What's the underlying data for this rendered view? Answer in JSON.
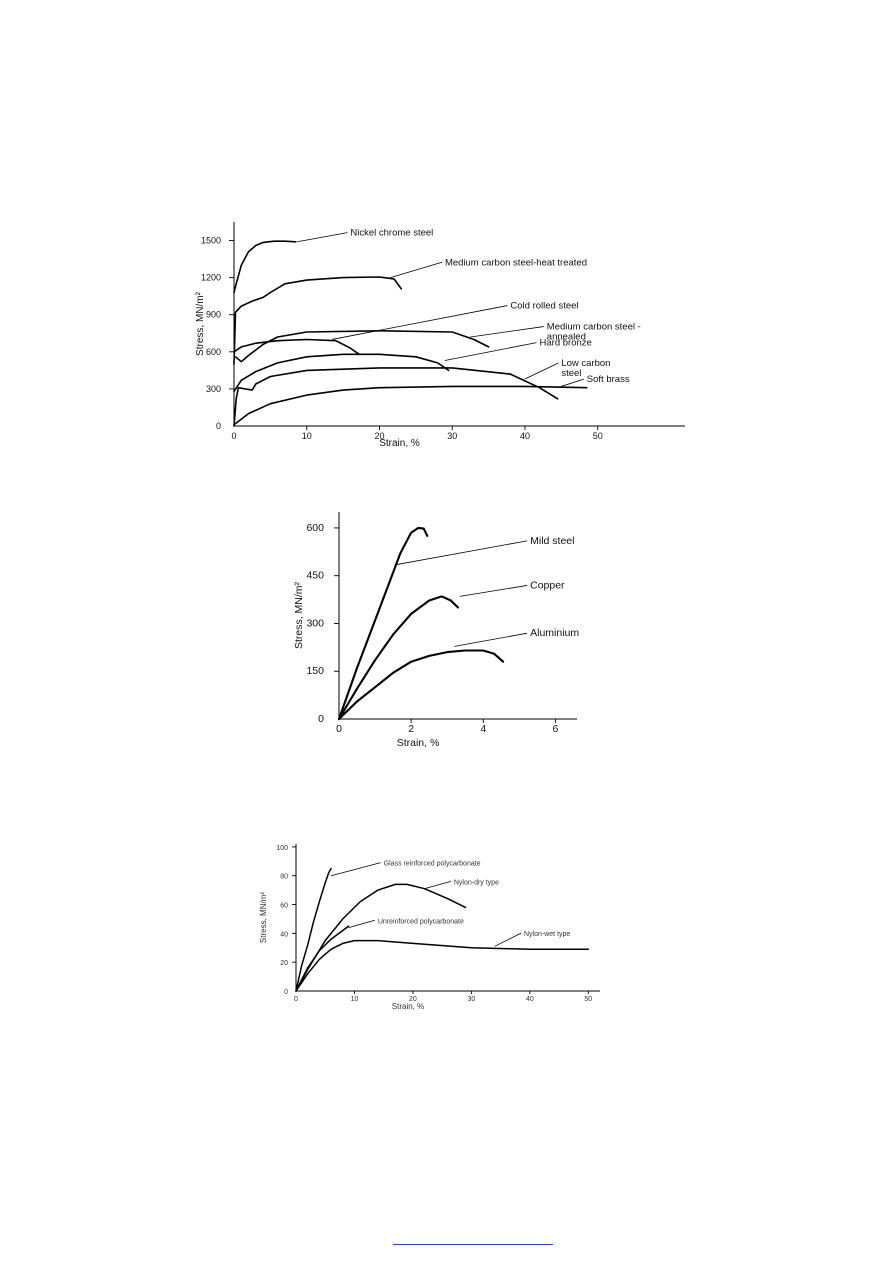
{
  "chart_data": [
    {
      "type": "line",
      "title": "",
      "xlabel": "Strain,   %",
      "ylabel": "Stress,   MN/m²",
      "xlim": [
        0,
        62
      ],
      "ylim": [
        0,
        1650
      ],
      "x_ticks": [
        0,
        10,
        20,
        30,
        40,
        50
      ],
      "y_ticks": [
        0,
        300,
        600,
        900,
        1200,
        1500
      ],
      "grid": false,
      "legend": "curve labels with leader lines",
      "series": [
        {
          "name": "Nickel chrome steel",
          "label_lines": [
            "Nickel chrome steel"
          ],
          "points": [
            [
              0,
              1080
            ],
            [
              0.3,
              1150
            ],
            [
              1,
              1300
            ],
            [
              2,
              1410
            ],
            [
              3,
              1460
            ],
            [
              4,
              1485
            ],
            [
              5.5,
              1495
            ],
            [
              7,
              1495
            ],
            [
              8.5,
              1490
            ]
          ],
          "label_at": [
            16,
            1540
          ],
          "leader_to": [
            8.7,
            1490
          ]
        },
        {
          "name": "Medium carbon steel-heat treated",
          "label_lines": [
            "Medium carbon steel-heat  treated"
          ],
          "points": [
            [
              0,
              500
            ],
            [
              0.2,
              920
            ],
            [
              1,
              970
            ],
            [
              2.5,
              1010
            ],
            [
              4,
              1040
            ],
            [
              5,
              1080
            ],
            [
              7,
              1150
            ],
            [
              10,
              1180
            ],
            [
              15,
              1200
            ],
            [
              20,
              1205
            ],
            [
              22,
              1190
            ],
            [
              23,
              1110
            ]
          ],
          "label_at": [
            29,
            1300
          ],
          "leader_to": [
            21.5,
            1200
          ]
        },
        {
          "name": "Cold rolled steel",
          "label_lines": [
            "Cold rolled steel"
          ],
          "points": [
            [
              0,
              600
            ],
            [
              1,
              640
            ],
            [
              3,
              670
            ],
            [
              6,
              690
            ],
            [
              10,
              700
            ],
            [
              14,
              690
            ],
            [
              16,
              630
            ],
            [
              17.2,
              580
            ]
          ],
          "label_at": [
            38,
            950
          ],
          "leader_to": [
            13.5,
            700
          ]
        },
        {
          "name": "Medium carbon steel-annealed",
          "label_lines": [
            "Medium carbon steel -",
            "annealed"
          ],
          "points": [
            [
              0.2,
              560
            ],
            [
              1,
              520
            ],
            [
              2,
              570
            ],
            [
              4,
              660
            ],
            [
              6,
              720
            ],
            [
              10,
              760
            ],
            [
              20,
              770
            ],
            [
              30,
              760
            ],
            [
              33,
              700
            ],
            [
              35,
              640
            ]
          ],
          "label_at": [
            43,
            780
          ],
          "leader_to": [
            32.5,
            720
          ]
        },
        {
          "name": "Hard bronze",
          "label_lines": [
            "Hard bronze"
          ],
          "points": [
            [
              0,
              280
            ],
            [
              1,
              370
            ],
            [
              3,
              440
            ],
            [
              6,
              510
            ],
            [
              10,
              560
            ],
            [
              15,
              580
            ],
            [
              20,
              580
            ],
            [
              25,
              560
            ],
            [
              28,
              510
            ],
            [
              29.5,
              450
            ]
          ],
          "label_at": [
            42,
            650
          ],
          "leader_to": [
            29,
            530
          ]
        },
        {
          "name": "Low carbon steel",
          "label_lines": [
            "Low carbon",
            "steel"
          ],
          "points": [
            [
              0,
              0
            ],
            [
              0.3,
              220
            ],
            [
              0.6,
              310
            ],
            [
              1.5,
              300
            ],
            [
              2.5,
              290
            ],
            [
              3,
              340
            ],
            [
              5,
              400
            ],
            [
              10,
              450
            ],
            [
              20,
              470
            ],
            [
              30,
              470
            ],
            [
              38,
              420
            ],
            [
              42,
              310
            ],
            [
              44.5,
              220
            ]
          ],
          "label_at": [
            45,
            485
          ],
          "leader_to": [
            40,
            380
          ]
        },
        {
          "name": "Soft brass",
          "label_lines": [
            "Soft brass"
          ],
          "points": [
            [
              0,
              10
            ],
            [
              2,
              100
            ],
            [
              5,
              180
            ],
            [
              10,
              250
            ],
            [
              15,
              290
            ],
            [
              20,
              310
            ],
            [
              30,
              320
            ],
            [
              40,
              320
            ],
            [
              48.5,
              310
            ]
          ],
          "label_at": [
            48.5,
            355
          ],
          "leader_to": [
            45,
            320
          ]
        }
      ]
    },
    {
      "type": "line",
      "title": "",
      "xlabel": "Strain,   %",
      "ylabel": "Stress,   MN/m²",
      "xlim": [
        0,
        6.6
      ],
      "ylim": [
        0,
        650
      ],
      "x_ticks": [
        0,
        2,
        4,
        6
      ],
      "y_ticks": [
        0,
        150,
        300,
        450,
        600
      ],
      "grid": false,
      "legend": "curve labels with leader lines",
      "series": [
        {
          "name": "Mild steel",
          "label_lines": [
            "Mild steel"
          ],
          "points": [
            [
              0,
              0
            ],
            [
              0.5,
              160
            ],
            [
              1,
              310
            ],
            [
              1.4,
              430
            ],
            [
              1.7,
              520
            ],
            [
              2,
              585
            ],
            [
              2.2,
              600
            ],
            [
              2.35,
              598
            ],
            [
              2.45,
              575
            ]
          ],
          "label_at": [
            5.3,
            550
          ],
          "leader_to": [
            1.6,
            485
          ]
        },
        {
          "name": "Copper",
          "label_lines": [
            "Copper"
          ],
          "points": [
            [
              0,
              0
            ],
            [
              0.5,
              95
            ],
            [
              1,
              185
            ],
            [
              1.5,
              265
            ],
            [
              2,
              330
            ],
            [
              2.5,
              372
            ],
            [
              2.85,
              385
            ],
            [
              3.1,
              372
            ],
            [
              3.3,
              350
            ]
          ],
          "label_at": [
            5.3,
            410
          ],
          "leader_to": [
            3.35,
            385
          ]
        },
        {
          "name": "Aluminium",
          "label_lines": [
            "Aluminium"
          ],
          "points": [
            [
              0,
              0
            ],
            [
              0.5,
              55
            ],
            [
              1,
              100
            ],
            [
              1.5,
              145
            ],
            [
              2,
              180
            ],
            [
              2.5,
              198
            ],
            [
              3,
              210
            ],
            [
              3.5,
              215
            ],
            [
              4,
              215
            ],
            [
              4.3,
              205
            ],
            [
              4.55,
              180
            ]
          ],
          "label_at": [
            5.3,
            260
          ],
          "leader_to": [
            3.2,
            228
          ]
        }
      ]
    },
    {
      "type": "line",
      "title": "",
      "xlabel": "Strain,   %",
      "ylabel": "Stress, MN/m²",
      "xlim": [
        0,
        52
      ],
      "ylim": [
        0,
        102
      ],
      "x_ticks": [
        0,
        10,
        20,
        30,
        40,
        50
      ],
      "y_ticks": [
        0,
        20,
        40,
        60,
        80,
        100
      ],
      "grid": false,
      "legend": "curve labels with leader lines",
      "series": [
        {
          "name": "Glass reinforced polycarbonate",
          "label_lines": [
            "Glass reinforced polycarbonate"
          ],
          "points": [
            [
              0,
              0
            ],
            [
              1,
              18
            ],
            [
              2,
              32
            ],
            [
              3,
              48
            ],
            [
              4,
              62
            ],
            [
              5,
              75
            ],
            [
              5.6,
              82
            ],
            [
              6,
              85
            ]
          ],
          "label_at": [
            15,
            87
          ],
          "leader_to": [
            6,
            80
          ]
        },
        {
          "name": "Nylon-dry type",
          "label_lines": [
            "Nylon-dry type"
          ],
          "points": [
            [
              0,
              0
            ],
            [
              2,
              15
            ],
            [
              5,
              35
            ],
            [
              8,
              50
            ],
            [
              11,
              62
            ],
            [
              14,
              70
            ],
            [
              17,
              74
            ],
            [
              19,
              74
            ],
            [
              22,
              71
            ],
            [
              26,
              64
            ],
            [
              29,
              58
            ]
          ],
          "label_at": [
            27,
            74
          ],
          "leader_to": [
            22,
            71
          ]
        },
        {
          "name": "Unreinforced polycarbonate",
          "label_lines": [
            "Unreinforced polycarbonate"
          ],
          "points": [
            [
              0,
              0
            ],
            [
              2,
              16
            ],
            [
              4,
              28
            ],
            [
              6,
              36
            ],
            [
              8,
              42
            ],
            [
              9,
              45
            ]
          ],
          "label_at": [
            14,
            47
          ],
          "leader_to": [
            9,
            44
          ]
        },
        {
          "name": "Nylon-wet type",
          "label_lines": [
            "Nylon-wet type"
          ],
          "points": [
            [
              0,
              0
            ],
            [
              2,
              12
            ],
            [
              4,
              22
            ],
            [
              6,
              29
            ],
            [
              8,
              33
            ],
            [
              10,
              35
            ],
            [
              14,
              35
            ],
            [
              20,
              33
            ],
            [
              30,
              30
            ],
            [
              40,
              29
            ],
            [
              50,
              29
            ]
          ],
          "label_at": [
            39,
            38
          ],
          "leader_to": [
            34,
            31
          ]
        }
      ]
    }
  ]
}
